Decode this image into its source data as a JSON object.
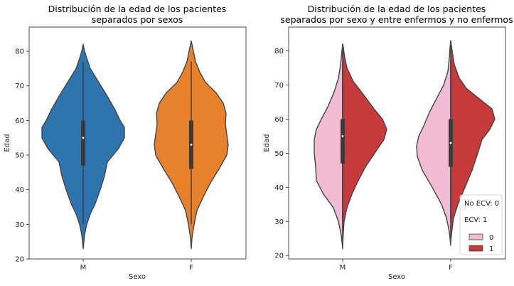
{
  "colors": {
    "blue": "#2e75b0",
    "orange": "#e8812c",
    "pink": "#f2bbd4",
    "red": "#c63a3b",
    "outline": "#444444",
    "box": "#3a3a3a"
  },
  "chart_data": [
    {
      "type": "violin",
      "title_line1": "Distribución de la edad de los pacientes",
      "title_line2": "separados por sexos",
      "xlabel": "Sexo",
      "ylabel": "Edad",
      "categories": [
        "M",
        "F"
      ],
      "ylim": [
        20,
        87
      ],
      "yticks": [
        20,
        30,
        40,
        50,
        60,
        70,
        80
      ],
      "violins": [
        {
          "category": "M",
          "color": "#2e75b0",
          "median": 55,
          "q1": 47,
          "q3": 60,
          "whisker_low": 30,
          "whisker_high": 77,
          "profile": [
            [
              23,
              0
            ],
            [
              27,
              2
            ],
            [
              30,
              5
            ],
            [
              33,
              10
            ],
            [
              36,
              17
            ],
            [
              40,
              24
            ],
            [
              44,
              30
            ],
            [
              48,
              34
            ],
            [
              52,
              50
            ],
            [
              55,
              58
            ],
            [
              58,
              58
            ],
            [
              60,
              52
            ],
            [
              63,
              45
            ],
            [
              67,
              34
            ],
            [
              71,
              22
            ],
            [
              75,
              10
            ],
            [
              78,
              5
            ],
            [
              80,
              2
            ],
            [
              82,
              0
            ]
          ]
        },
        {
          "category": "F",
          "color": "#e8812c",
          "median": 53,
          "q1": 46,
          "q3": 60,
          "whisker_low": 30,
          "whisker_high": 77,
          "profile": [
            [
              23,
              0
            ],
            [
              26,
              1
            ],
            [
              30,
              4
            ],
            [
              34,
              8
            ],
            [
              38,
              17
            ],
            [
              42,
              27
            ],
            [
              46,
              39
            ],
            [
              50,
              50
            ],
            [
              53,
              52
            ],
            [
              56,
              50
            ],
            [
              59,
              48
            ],
            [
              62,
              49
            ],
            [
              65,
              45
            ],
            [
              68,
              35
            ],
            [
              71,
              20
            ],
            [
              74,
              12
            ],
            [
              77,
              6
            ],
            [
              80,
              3
            ],
            [
              83,
              0
            ]
          ]
        }
      ]
    },
    {
      "type": "violin",
      "title_line1": "Distribución de la edad de los pacientes",
      "title_line2": "separados por sexo y entre enfermos y no enfermos",
      "xlabel": "Sexo",
      "ylabel": "Edad",
      "categories": [
        "M",
        "F"
      ],
      "ylim": [
        19,
        87
      ],
      "yticks": [
        20,
        30,
        40,
        50,
        60,
        70,
        80
      ],
      "legend": {
        "position": "lower-right",
        "notes": [
          "No ECV: 0",
          "ECV: 1"
        ],
        "entries": [
          {
            "label": "0",
            "color": "#f2bbd4"
          },
          {
            "label": "1",
            "color": "#c63a3b"
          }
        ]
      },
      "violins": [
        {
          "category": "M",
          "median": 55,
          "q1": 47,
          "q3": 60,
          "whisker_low": 30,
          "whisker_high": 77,
          "left_profile": [
            [
              22,
              0
            ],
            [
              26,
              2
            ],
            [
              30,
              6
            ],
            [
              34,
              13
            ],
            [
              38,
              27
            ],
            [
              42,
              37
            ],
            [
              46,
              38
            ],
            [
              50,
              40
            ],
            [
              54,
              40
            ],
            [
              57,
              37
            ],
            [
              60,
              30
            ],
            [
              64,
              20
            ],
            [
              68,
              12
            ],
            [
              72,
              6
            ],
            [
              76,
              3
            ],
            [
              80,
              1
            ],
            [
              82,
              0
            ]
          ],
          "right_profile": [
            [
              23,
              0
            ],
            [
              27,
              1
            ],
            [
              30,
              2
            ],
            [
              34,
              6
            ],
            [
              38,
              13
            ],
            [
              42,
              22
            ],
            [
              46,
              32
            ],
            [
              50,
              45
            ],
            [
              54,
              58
            ],
            [
              57,
              62
            ],
            [
              60,
              56
            ],
            [
              63,
              44
            ],
            [
              67,
              30
            ],
            [
              71,
              15
            ],
            [
              75,
              6
            ],
            [
              78,
              3
            ],
            [
              81,
              1
            ],
            [
              82,
              0
            ]
          ]
        },
        {
          "category": "F",
          "median": 53,
          "q1": 46,
          "q3": 60,
          "whisker_low": 30,
          "whisker_high": 77,
          "left_profile": [
            [
              23,
              0
            ],
            [
              27,
              2
            ],
            [
              31,
              6
            ],
            [
              35,
              13
            ],
            [
              40,
              26
            ],
            [
              45,
              40
            ],
            [
              49,
              47
            ],
            [
              52,
              48
            ],
            [
              55,
              45
            ],
            [
              58,
              38
            ],
            [
              62,
              30
            ],
            [
              66,
              20
            ],
            [
              70,
              10
            ],
            [
              74,
              4
            ],
            [
              78,
              2
            ],
            [
              81,
              1
            ],
            [
              83,
              0
            ]
          ],
          "right_profile": [
            [
              24,
              0
            ],
            [
              28,
              2
            ],
            [
              31,
              4
            ],
            [
              35,
              10
            ],
            [
              40,
              20
            ],
            [
              45,
              30
            ],
            [
              50,
              38
            ],
            [
              54,
              44
            ],
            [
              57,
              55
            ],
            [
              60,
              62
            ],
            [
              63,
              58
            ],
            [
              66,
              40
            ],
            [
              69,
              22
            ],
            [
              72,
              12
            ],
            [
              76,
              5
            ],
            [
              80,
              2
            ],
            [
              83,
              0
            ]
          ]
        }
      ]
    }
  ]
}
